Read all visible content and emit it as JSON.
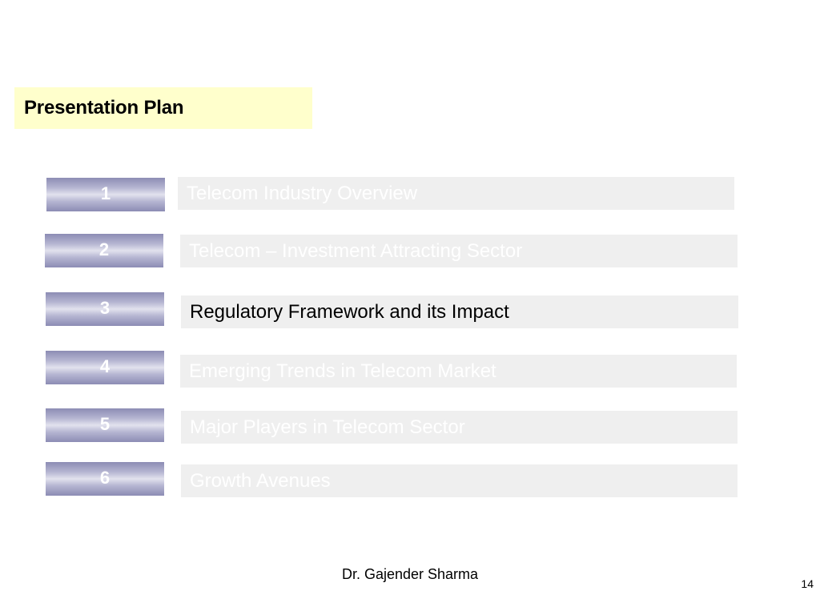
{
  "slide": {
    "title": "Presentation Plan",
    "items": [
      {
        "number": "1",
        "label": "Telecom Industry Overview",
        "active": false
      },
      {
        "number": "2",
        "label": "Telecom – Investment Attracting Sector",
        "active": false
      },
      {
        "number": "3",
        "label": "Regulatory Framework and its Impact",
        "active": true
      },
      {
        "number": "4",
        "label": "Emerging Trends in Telecom Market",
        "active": false
      },
      {
        "number": "5",
        "label": "Major Players in Telecom Sector",
        "active": false
      },
      {
        "number": "6",
        "label": "Growth Avenues",
        "active": false
      }
    ],
    "footer_author": "Dr. Gajender Sharma",
    "page_number": "14"
  },
  "colors": {
    "title_background": "#ffffcc",
    "label_background": "#efefef",
    "inactive_text": "#ffffff",
    "active_text": "#000000",
    "number_box": "#8c8cb4"
  }
}
